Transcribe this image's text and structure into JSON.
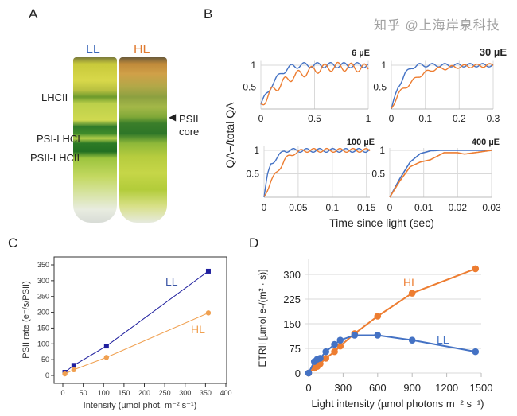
{
  "panels": {
    "a": "A",
    "b": "B",
    "c": "C",
    "d": "D"
  },
  "gel": {
    "tube_labels": [
      "LL",
      "HL"
    ],
    "tube_colors": [
      "#3a66b8",
      "#e07b30"
    ],
    "band_labels": [
      "LHCII",
      "PSI-LHCI",
      "PSII-LHCII"
    ],
    "right_label": "PSII core",
    "right_arrow_icon": "triangle-left-icon"
  },
  "watermark": "知乎 @上海岸泉科技",
  "chart_data": [
    {
      "type": "line",
      "panel": "B",
      "ylabel": "QA−/total QA",
      "xlabel": "Time since light (sec)",
      "colors": [
        "#4472c4",
        "#ed7d31"
      ],
      "grid": true,
      "subplots": [
        {
          "title": "6 µE",
          "xlim": [
            0,
            1
          ],
          "ylim": [
            0,
            1.1
          ],
          "xticks": [
            "0",
            "0.5",
            "1"
          ],
          "yticks": [
            "0.5",
            "1"
          ],
          "series": [
            {
              "x": [
                0,
                0.1,
                0.2,
                0.3,
                0.4,
                0.5,
                1
              ],
              "y": [
                0.1,
                0.55,
                0.85,
                0.98,
                1,
                1,
                1
              ]
            },
            {
              "x": [
                0,
                0.1,
                0.2,
                0.3,
                0.5,
                0.7,
                1
              ],
              "y": [
                0.1,
                0.4,
                0.6,
                0.75,
                0.9,
                0.97,
                0.93
              ]
            }
          ]
        },
        {
          "title": "30 µE",
          "xlim": [
            0,
            0.3
          ],
          "ylim": [
            0,
            1.1
          ],
          "xticks": [
            "0",
            "0.1",
            "0.2",
            "0.3"
          ],
          "yticks": [
            "0.5",
            "1"
          ],
          "series": [
            {
              "x": [
                0,
                0.02,
                0.04,
                0.06,
                0.08,
                0.1,
                0.3
              ],
              "y": [
                0,
                0.5,
                0.8,
                0.95,
                1,
                1,
                1
              ]
            },
            {
              "x": [
                0,
                0.02,
                0.05,
                0.08,
                0.12,
                0.2,
                0.3
              ],
              "y": [
                0,
                0.35,
                0.55,
                0.75,
                0.9,
                0.97,
                1
              ]
            }
          ]
        },
        {
          "title": "100 µE",
          "xlim": [
            0,
            0.155
          ],
          "ylim": [
            0,
            1.1
          ],
          "xticks": [
            "0",
            "0.05",
            "0.1",
            "0.15"
          ],
          "yticks": [
            "0.5",
            "1"
          ],
          "series": [
            {
              "x": [
                0,
                0.005,
                0.01,
                0.02,
                0.03,
                0.05,
                0.155
              ],
              "y": [
                0,
                0.45,
                0.72,
                0.85,
                1,
                1,
                1
              ]
            },
            {
              "x": [
                0,
                0.01,
                0.02,
                0.03,
                0.045,
                0.06,
                0.155
              ],
              "y": [
                0,
                0.35,
                0.55,
                0.8,
                0.95,
                1,
                1
              ]
            }
          ]
        },
        {
          "title": "400 µE",
          "xlim": [
            0,
            0.03
          ],
          "ylim": [
            0,
            1.05
          ],
          "xticks": [
            "0",
            "0.01",
            "0.02",
            "0.03"
          ],
          "yticks": [
            "0.5",
            "1"
          ],
          "series": [
            {
              "x": [
                0,
                0.003,
                0.006,
                0.009,
                0.012,
                0.015,
                0.03
              ],
              "y": [
                0,
                0.4,
                0.75,
                0.93,
                0.99,
                1,
                1
              ]
            },
            {
              "x": [
                0,
                0.003,
                0.006,
                0.009,
                0.012,
                0.016,
                0.02,
                0.022,
                0.03
              ],
              "y": [
                0,
                0.35,
                0.65,
                0.75,
                0.8,
                0.95,
                0.95,
                0.92,
                1
              ]
            }
          ]
        }
      ]
    },
    {
      "type": "line",
      "panel": "C",
      "xlabel": "Intensity (µmol phot. m⁻² s⁻¹)",
      "ylabel": "PSII rate (e⁻/s/PSII)",
      "xlim": [
        -25,
        400
      ],
      "ylim": [
        -25,
        370
      ],
      "xticks": [
        0,
        50,
        100,
        150,
        200,
        250,
        300,
        350,
        400
      ],
      "yticks": [
        0,
        50,
        100,
        150,
        200,
        250,
        300,
        350
      ],
      "grid": false,
      "series": [
        {
          "name": "LL",
          "color": "#1f1f9e",
          "marker": "square",
          "x": [
            5,
            27,
            107,
            357
          ],
          "y": [
            10,
            32,
            93,
            330
          ]
        },
        {
          "name": "HL",
          "color": "#f0a050",
          "marker": "circle",
          "x": [
            5,
            27,
            107,
            357
          ],
          "y": [
            5,
            18,
            57,
            198
          ]
        }
      ]
    },
    {
      "type": "line",
      "panel": "D",
      "xlabel": "Light intensity (µmol photons m⁻² s⁻¹)",
      "ylabel": "ETRII [µmol e-/(m² · s)]",
      "xlim": [
        0,
        1500
      ],
      "ylim": [
        0,
        340
      ],
      "xticks": [
        0,
        300,
        600,
        900,
        1200,
        1500
      ],
      "yticks": [
        0,
        75,
        150,
        225,
        300
      ],
      "grid": true,
      "series": [
        {
          "name": "HL",
          "color": "#ed7d31",
          "x": [
            0,
            50,
            75,
            100,
            150,
            225,
            275,
            400,
            600,
            900,
            1450
          ],
          "y": [
            0,
            15,
            20,
            28,
            45,
            65,
            82,
            120,
            173,
            243,
            317
          ]
        },
        {
          "name": "LL",
          "color": "#4472c4",
          "x": [
            0,
            50,
            75,
            100,
            150,
            225,
            275,
            400,
            600,
            900,
            1450
          ],
          "y": [
            0,
            35,
            42,
            45,
            65,
            87,
            100,
            115,
            115,
            100,
            65
          ]
        }
      ]
    }
  ]
}
